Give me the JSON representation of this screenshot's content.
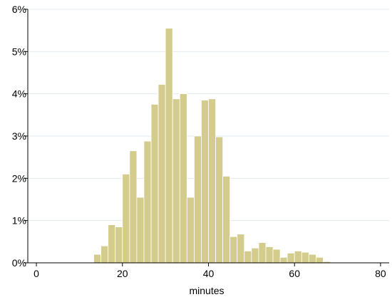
{
  "chart_data": {
    "type": "bar",
    "title": "",
    "xlabel": "minutes",
    "ylabel": "",
    "xlim": [
      -2,
      82
    ],
    "ylim": [
      0,
      6
    ],
    "x_ticks": [
      0,
      20,
      40,
      60,
      80
    ],
    "y_ticks": [
      {
        "value": 0,
        "label": "0%"
      },
      {
        "value": 1,
        "label": "1%"
      },
      {
        "value": 2,
        "label": "2%"
      },
      {
        "value": 3,
        "label": "3%"
      },
      {
        "value": 4,
        "label": "4%"
      },
      {
        "value": 5,
        "label": "5%"
      },
      {
        "value": 6,
        "label": "6%"
      }
    ],
    "grid": true,
    "bar_color": "#d4cc8c",
    "grid_color": "#e3ebef",
    "bin_width": 1.667,
    "bins": [
      {
        "x0": 13.33,
        "value": 0.2
      },
      {
        "x0": 15.0,
        "value": 0.4
      },
      {
        "x0": 16.67,
        "value": 0.9
      },
      {
        "x0": 18.33,
        "value": 0.85
      },
      {
        "x0": 20.0,
        "value": 2.1
      },
      {
        "x0": 21.67,
        "value": 2.65
      },
      {
        "x0": 23.33,
        "value": 1.55
      },
      {
        "x0": 25.0,
        "value": 2.88
      },
      {
        "x0": 26.67,
        "value": 3.75
      },
      {
        "x0": 28.33,
        "value": 4.22
      },
      {
        "x0": 30.0,
        "value": 5.55
      },
      {
        "x0": 31.67,
        "value": 3.88
      },
      {
        "x0": 33.33,
        "value": 4.0
      },
      {
        "x0": 35.0,
        "value": 1.55
      },
      {
        "x0": 36.67,
        "value": 3.0
      },
      {
        "x0": 38.33,
        "value": 3.85
      },
      {
        "x0": 40.0,
        "value": 3.88
      },
      {
        "x0": 41.67,
        "value": 2.98
      },
      {
        "x0": 43.33,
        "value": 2.05
      },
      {
        "x0": 45.0,
        "value": 0.62
      },
      {
        "x0": 46.67,
        "value": 0.68
      },
      {
        "x0": 48.33,
        "value": 0.28
      },
      {
        "x0": 50.0,
        "value": 0.35
      },
      {
        "x0": 51.67,
        "value": 0.48
      },
      {
        "x0": 53.33,
        "value": 0.38
      },
      {
        "x0": 55.0,
        "value": 0.32
      },
      {
        "x0": 56.67,
        "value": 0.13
      },
      {
        "x0": 58.33,
        "value": 0.23
      },
      {
        "x0": 60.0,
        "value": 0.28
      },
      {
        "x0": 61.67,
        "value": 0.25
      },
      {
        "x0": 63.33,
        "value": 0.2
      },
      {
        "x0": 65.0,
        "value": 0.13
      },
      {
        "x0": 66.67,
        "value": 0.03
      }
    ]
  }
}
